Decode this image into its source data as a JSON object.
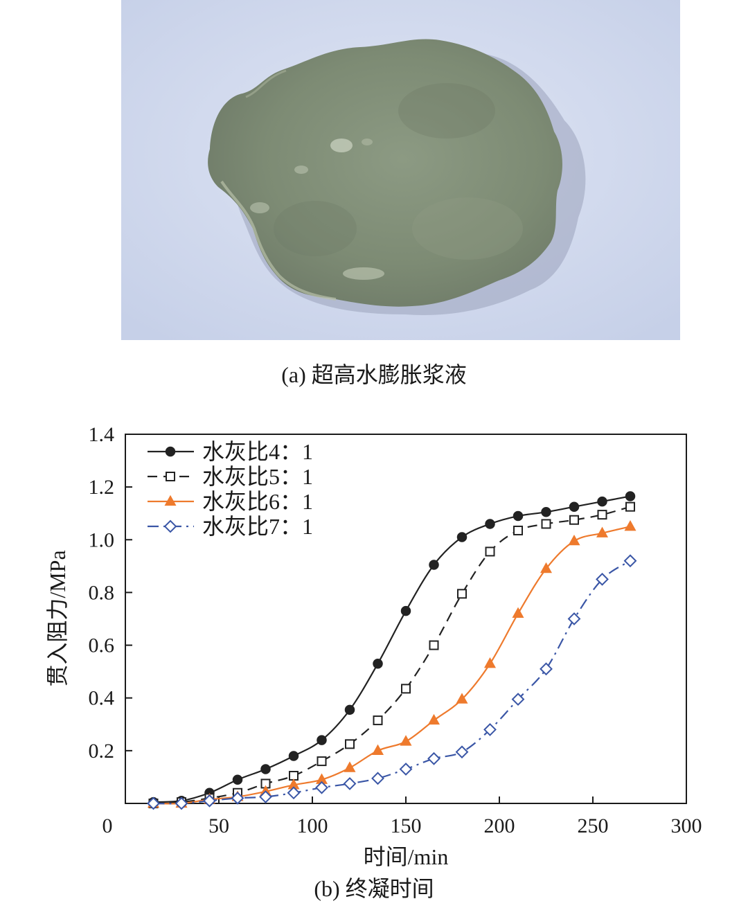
{
  "photo": {
    "subject": "slurry-patty"
  },
  "captions": {
    "a": "(a) 超高水膨胀浆液",
    "b": "(b) 终凝时间"
  },
  "chart_data": {
    "type": "line",
    "title": "",
    "xlabel": "时间/min",
    "ylabel": "贯入阻力/MPa",
    "xlim": [
      0,
      300
    ],
    "ylim": [
      0,
      1.4
    ],
    "xticks": [
      0,
      50,
      100,
      150,
      200,
      250,
      300
    ],
    "yticks": [
      0.2,
      0.4,
      0.6,
      0.8,
      1.0,
      1.2,
      1.4
    ],
    "xtick_labels": [
      "0",
      "50",
      "100",
      "150",
      "200",
      "250",
      "300"
    ],
    "ytick_labels": [
      "0.2",
      "0.4",
      "0.6",
      "0.8",
      "1.0",
      "1.2",
      "1.4"
    ],
    "grid": false,
    "legend_position": "top-left",
    "series": [
      {
        "name": "水灰比4：1",
        "color": "#222222",
        "marker": "filled-circle",
        "dash": "solid",
        "points": [
          [
            15,
            0.005
          ],
          [
            30,
            0.01
          ],
          [
            45,
            0.04
          ],
          [
            60,
            0.09
          ],
          [
            75,
            0.13
          ],
          [
            90,
            0.18
          ],
          [
            105,
            0.24
          ],
          [
            120,
            0.355
          ],
          [
            135,
            0.53
          ],
          [
            150,
            0.73
          ],
          [
            165,
            0.905
          ],
          [
            180,
            1.01
          ],
          [
            195,
            1.06
          ],
          [
            210,
            1.09
          ],
          [
            225,
            1.105
          ],
          [
            240,
            1.125
          ],
          [
            255,
            1.145
          ],
          [
            270,
            1.165
          ]
        ]
      },
      {
        "name": "水灰比5：1",
        "color": "#222222",
        "marker": "open-square",
        "dash": "dashed",
        "points": [
          [
            15,
            0.0
          ],
          [
            30,
            0.005
          ],
          [
            45,
            0.02
          ],
          [
            60,
            0.04
          ],
          [
            75,
            0.075
          ],
          [
            90,
            0.105
          ],
          [
            105,
            0.16
          ],
          [
            120,
            0.225
          ],
          [
            135,
            0.315
          ],
          [
            150,
            0.435
          ],
          [
            165,
            0.6
          ],
          [
            180,
            0.795
          ],
          [
            195,
            0.955
          ],
          [
            210,
            1.035
          ],
          [
            225,
            1.06
          ],
          [
            240,
            1.075
          ],
          [
            255,
            1.095
          ],
          [
            270,
            1.125
          ]
        ]
      },
      {
        "name": "水灰比6：1",
        "color": "#ee7a2d",
        "marker": "filled-triangle",
        "dash": "solid",
        "points": [
          [
            15,
            0.0
          ],
          [
            30,
            0.0
          ],
          [
            45,
            0.015
          ],
          [
            60,
            0.025
          ],
          [
            75,
            0.045
          ],
          [
            90,
            0.07
          ],
          [
            105,
            0.09
          ],
          [
            120,
            0.135
          ],
          [
            135,
            0.2
          ],
          [
            150,
            0.235
          ],
          [
            165,
            0.315
          ],
          [
            180,
            0.395
          ],
          [
            195,
            0.53
          ],
          [
            210,
            0.72
          ],
          [
            225,
            0.89
          ],
          [
            240,
            0.995
          ],
          [
            255,
            1.025
          ],
          [
            270,
            1.05
          ]
        ]
      },
      {
        "name": "水灰比7：1",
        "color": "#3a56a6",
        "marker": "open-diamond",
        "dash": "dashdot",
        "points": [
          [
            15,
            0.0
          ],
          [
            30,
            0.0
          ],
          [
            45,
            0.01
          ],
          [
            60,
            0.02
          ],
          [
            75,
            0.025
          ],
          [
            90,
            0.04
          ],
          [
            105,
            0.06
          ],
          [
            120,
            0.075
          ],
          [
            135,
            0.095
          ],
          [
            150,
            0.13
          ],
          [
            165,
            0.17
          ],
          [
            180,
            0.195
          ],
          [
            195,
            0.28
          ],
          [
            210,
            0.395
          ],
          [
            225,
            0.51
          ],
          [
            240,
            0.7
          ],
          [
            255,
            0.85
          ],
          [
            270,
            0.92
          ]
        ]
      }
    ]
  }
}
